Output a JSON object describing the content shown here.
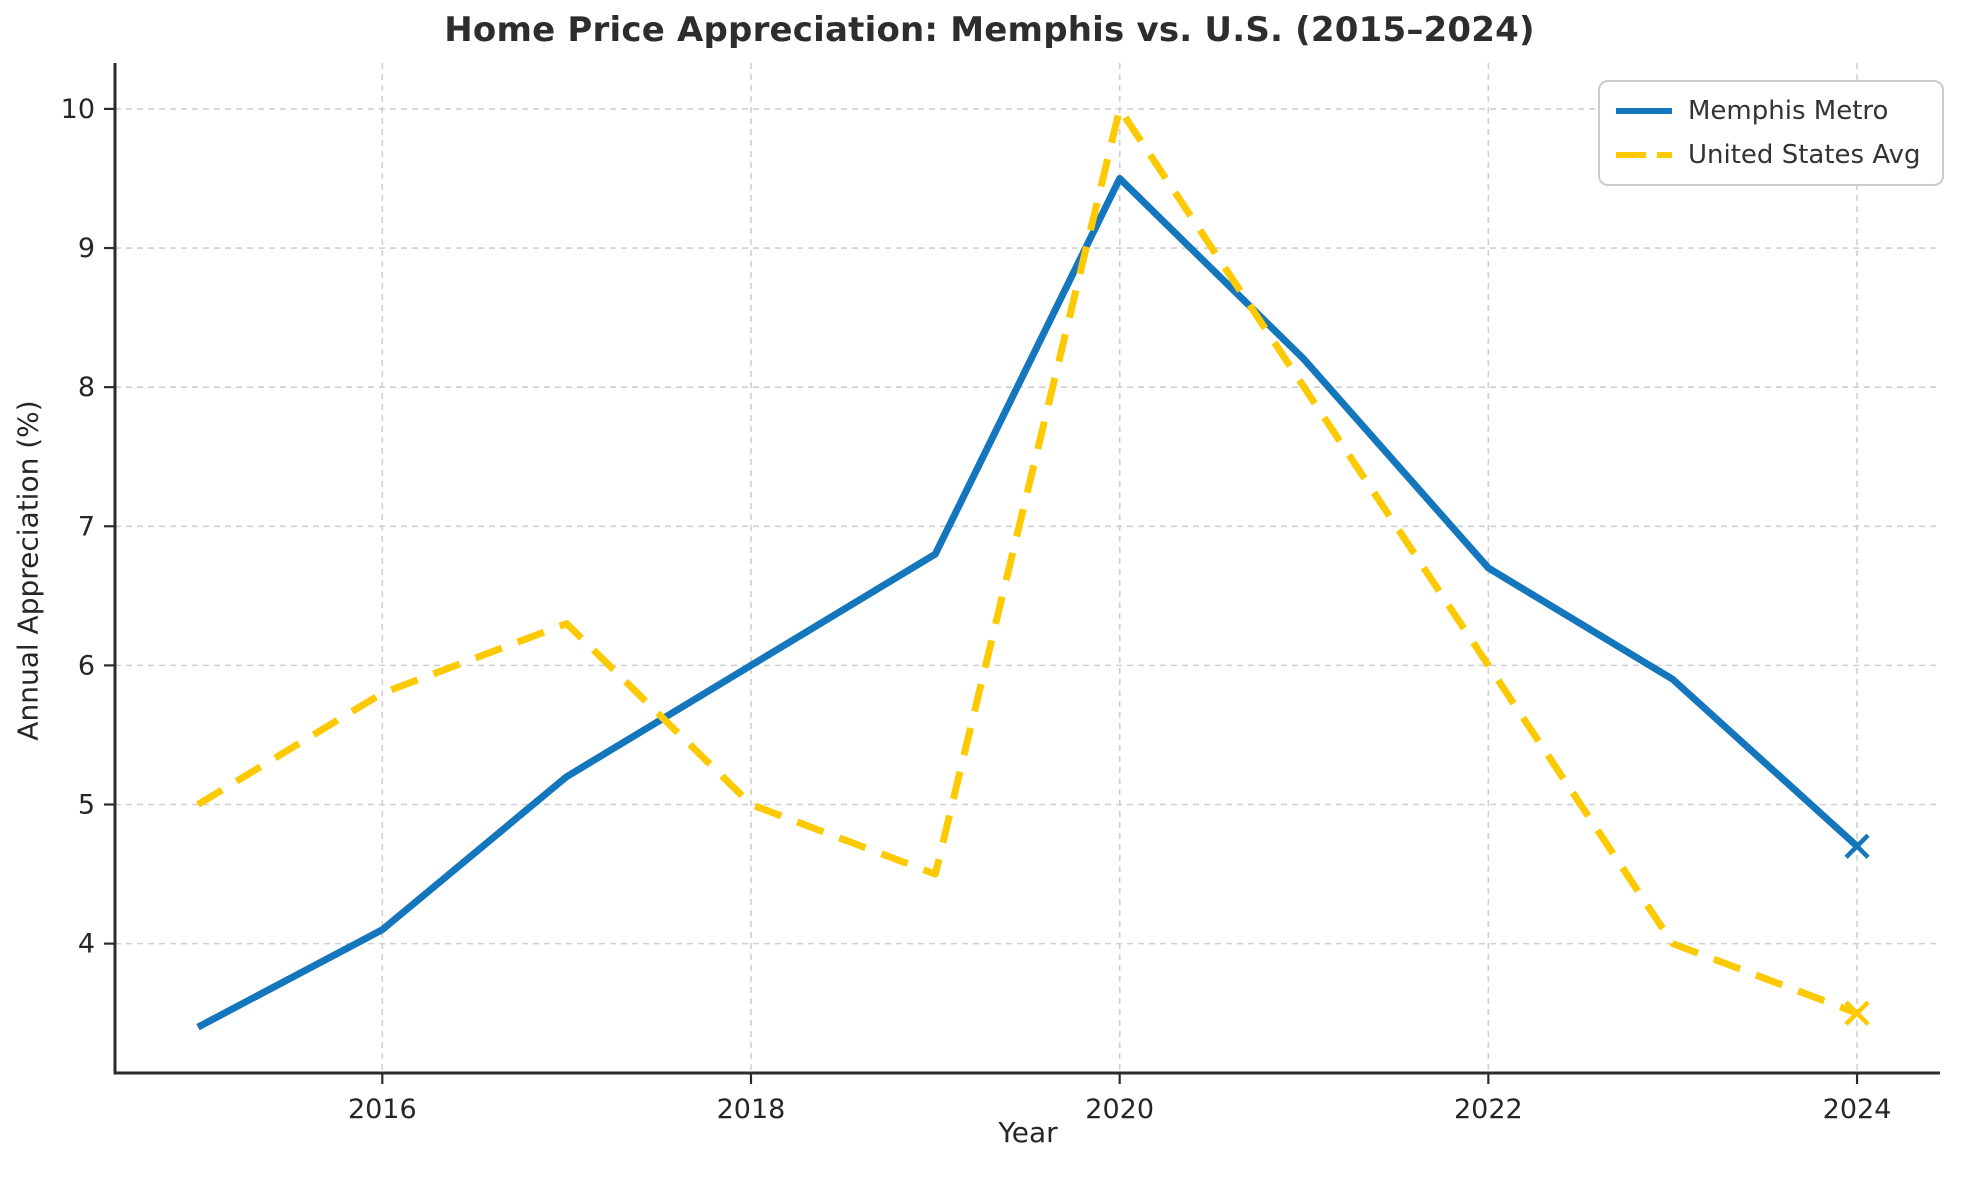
{
  "figure": {
    "background": "#ffffff",
    "text_color": "#262626",
    "grid_color": "#d0d0d0",
    "spine_color": "#2b2b2b"
  },
  "chart_data": {
    "type": "line",
    "title": "Home Price Appreciation: Memphis vs. U.S. (2015–2024)",
    "xlabel": "Year",
    "ylabel": "Annual Appreciation (%)",
    "x": [
      2015,
      2016,
      2017,
      2018,
      2019,
      2020,
      2021,
      2022,
      2023,
      2024
    ],
    "series": [
      {
        "name": "Memphis Metro",
        "color": "#1476BC",
        "style": "solid",
        "end_marker": "x",
        "values": [
          3.4,
          4.1,
          5.2,
          6.0,
          6.8,
          9.5,
          8.2,
          6.7,
          5.9,
          4.7
        ]
      },
      {
        "name": "United States Avg",
        "color": "#FDCA01",
        "style": "dashed",
        "end_marker": "x",
        "values": [
          5.0,
          5.8,
          6.3,
          5.0,
          4.5,
          10.0,
          8.0,
          6.0,
          4.0,
          3.5
        ]
      }
    ],
    "xticks": [
      2016,
      2018,
      2020,
      2022,
      2024
    ],
    "yticks": [
      4,
      5,
      6,
      7,
      8,
      9,
      10
    ],
    "xlim": [
      2014.55,
      2024.45
    ],
    "ylim": [
      3.07,
      10.33
    ],
    "grid": true,
    "legend_position": "upper right"
  }
}
